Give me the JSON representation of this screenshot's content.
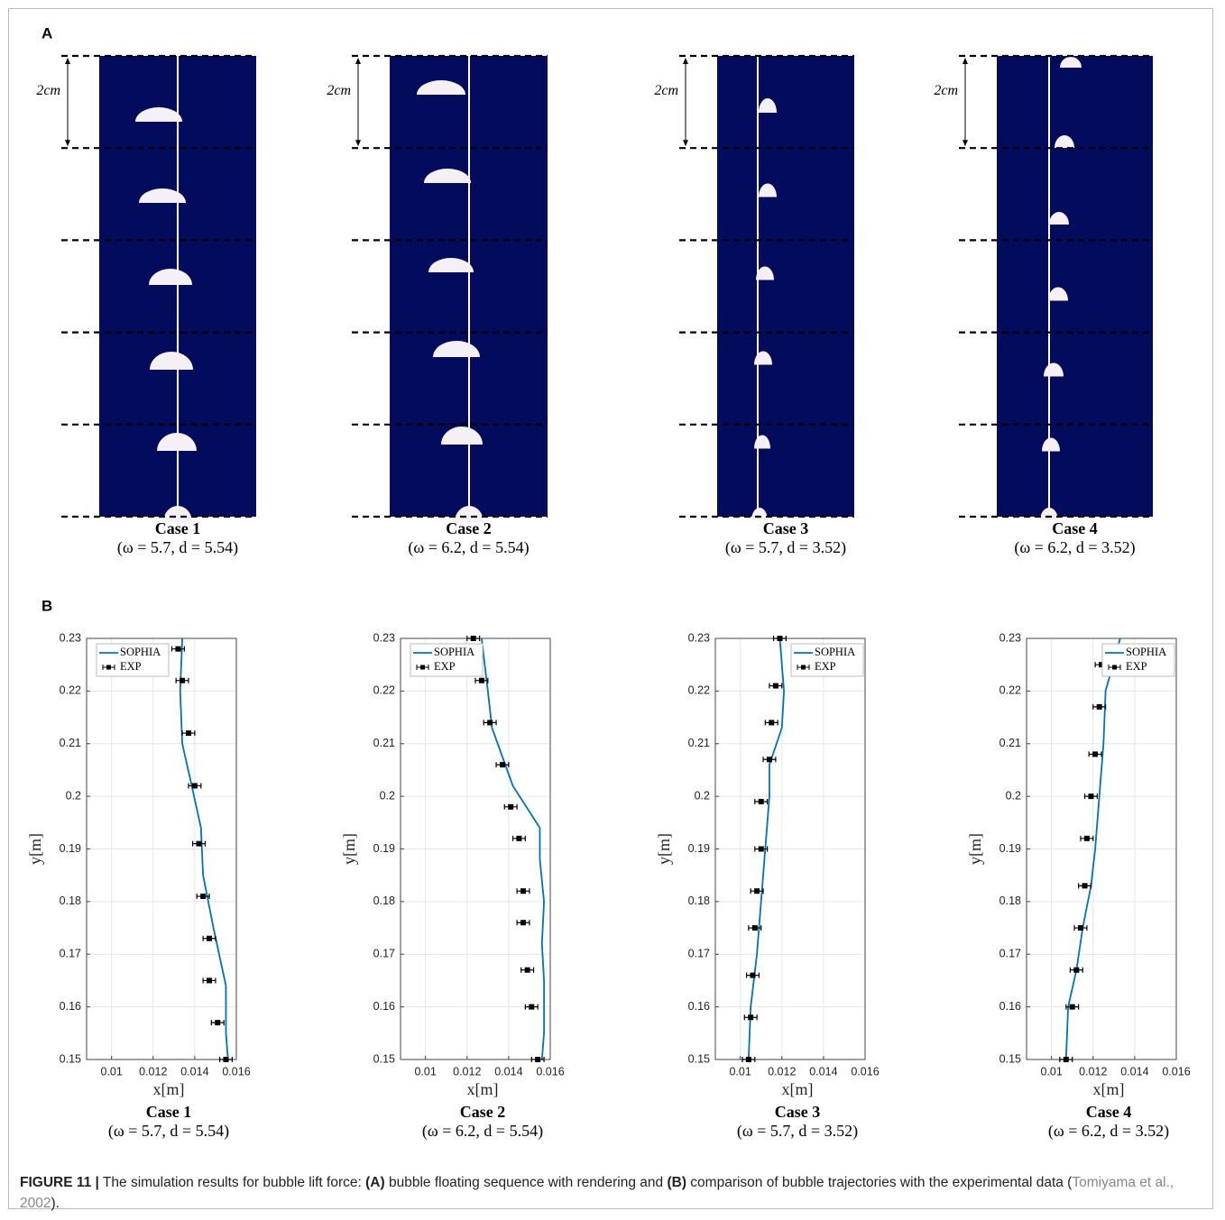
{
  "panel_a": {
    "label": "A",
    "scale_label": "2cm",
    "cases": [
      {
        "title": "Case 1",
        "params": "(ω = 5.7, d = 5.54)"
      },
      {
        "title": "Case 2",
        "params": "(ω = 6.2, d = 5.54)"
      },
      {
        "title": "Case 3",
        "params": "(ω = 5.7, d = 3.52)"
      },
      {
        "title": "Case 4",
        "params": "(ω = 6.2, d = 3.52)"
      }
    ]
  },
  "panel_b_label": "B",
  "chart_data": [
    {
      "type": "line",
      "title": "Case 1",
      "subtitle": "(ω = 5.7, d = 5.54)",
      "xlabel": "x[m]",
      "ylabel": "y[m]",
      "xlim": [
        0.0088,
        0.016
      ],
      "ylim": [
        0.15,
        0.23
      ],
      "xticks": [
        0.01,
        0.012,
        0.014,
        0.016
      ],
      "yticks": [
        0.15,
        0.16,
        0.17,
        0.18,
        0.19,
        0.2,
        0.21,
        0.22,
        0.23
      ],
      "grid": true,
      "legend": "upper left",
      "series": [
        {
          "name": "SOPHIA",
          "type": "line",
          "color": "#0072bd",
          "x": [
            0.0134,
            0.0133,
            0.0134,
            0.0138,
            0.0143,
            0.0144,
            0.0149,
            0.0155,
            0.0155,
            0.0156
          ],
          "values": [
            0.23,
            0.22,
            0.21,
            0.203,
            0.194,
            0.185,
            0.175,
            0.164,
            0.155,
            0.15
          ]
        },
        {
          "name": "EXP",
          "type": "errorbar",
          "color": "#000000",
          "x": [
            0.0132,
            0.0134,
            0.0137,
            0.014,
            0.0142,
            0.0144,
            0.0147,
            0.0147,
            0.0151,
            0.0155
          ],
          "values": [
            0.228,
            0.222,
            0.212,
            0.202,
            0.191,
            0.181,
            0.173,
            0.165,
            0.157,
            0.15
          ],
          "xerr": [
            0.0003,
            0.0003,
            0.0003,
            0.0003,
            0.0003,
            0.0003,
            0.0003,
            0.0003,
            0.0003,
            0.0003
          ]
        }
      ]
    },
    {
      "type": "line",
      "title": "Case 2",
      "subtitle": "(ω = 6.2, d = 5.54)",
      "xlabel": "x[m]",
      "ylabel": "y[m]",
      "xlim": [
        0.0088,
        0.016
      ],
      "ylim": [
        0.15,
        0.23
      ],
      "xticks": [
        0.01,
        0.012,
        0.014,
        0.016
      ],
      "yticks": [
        0.15,
        0.16,
        0.17,
        0.18,
        0.19,
        0.2,
        0.21,
        0.22,
        0.23
      ],
      "grid": true,
      "legend": "upper left",
      "series": [
        {
          "name": "SOPHIA",
          "type": "line",
          "color": "#0072bd",
          "x": [
            0.0127,
            0.013,
            0.0132,
            0.0142,
            0.0155,
            0.0155,
            0.0157,
            0.0156,
            0.0157,
            0.0157,
            0.0156
          ],
          "values": [
            0.23,
            0.22,
            0.213,
            0.202,
            0.194,
            0.188,
            0.18,
            0.172,
            0.165,
            0.155,
            0.15
          ]
        },
        {
          "name": "EXP",
          "type": "errorbar",
          "color": "#000000",
          "x": [
            0.0123,
            0.0127,
            0.0131,
            0.0137,
            0.0141,
            0.0145,
            0.0147,
            0.0147,
            0.0149,
            0.0151,
            0.0154
          ],
          "values": [
            0.23,
            0.222,
            0.214,
            0.206,
            0.198,
            0.192,
            0.182,
            0.176,
            0.167,
            0.16,
            0.15
          ],
          "xerr": [
            0.0003,
            0.0003,
            0.0003,
            0.0003,
            0.0003,
            0.0003,
            0.0003,
            0.0003,
            0.0003,
            0.0003,
            0.0003
          ]
        }
      ]
    },
    {
      "type": "line",
      "title": "Case 3",
      "subtitle": "(ω = 5.7, d = 3.52)",
      "xlabel": "x[m]",
      "ylabel": "y[m]",
      "xlim": [
        0.0088,
        0.016
      ],
      "ylim": [
        0.15,
        0.23
      ],
      "xticks": [
        0.01,
        0.012,
        0.014,
        0.016
      ],
      "yticks": [
        0.15,
        0.16,
        0.17,
        0.18,
        0.19,
        0.2,
        0.21,
        0.22,
        0.23
      ],
      "grid": true,
      "legend": "upper right",
      "series": [
        {
          "name": "SOPHIA",
          "type": "line",
          "color": "#0072bd",
          "x": [
            0.0119,
            0.0121,
            0.012,
            0.0114,
            0.0114,
            0.0112,
            0.011,
            0.0108,
            0.0105,
            0.0104
          ],
          "values": [
            0.23,
            0.22,
            0.213,
            0.206,
            0.2,
            0.19,
            0.18,
            0.17,
            0.16,
            0.15
          ]
        },
        {
          "name": "EXP",
          "type": "errorbar",
          "color": "#000000",
          "x": [
            0.0119,
            0.0117,
            0.0115,
            0.0114,
            0.011,
            0.011,
            0.0108,
            0.0107,
            0.0106,
            0.0105,
            0.0104
          ],
          "values": [
            0.23,
            0.221,
            0.214,
            0.207,
            0.199,
            0.19,
            0.182,
            0.175,
            0.166,
            0.158,
            0.15
          ],
          "xerr": [
            0.0003,
            0.0003,
            0.0003,
            0.0003,
            0.0003,
            0.0003,
            0.0003,
            0.0003,
            0.0003,
            0.0003,
            0.0003
          ]
        }
      ]
    },
    {
      "type": "line",
      "title": "Case 4",
      "subtitle": "(ω = 6.2, d = 3.52)",
      "xlabel": "x[m]",
      "ylabel": "y[m]",
      "xlim": [
        0.0088,
        0.016
      ],
      "ylim": [
        0.15,
        0.23
      ],
      "xticks": [
        0.01,
        0.012,
        0.014,
        0.016
      ],
      "yticks": [
        0.15,
        0.16,
        0.17,
        0.18,
        0.19,
        0.2,
        0.21,
        0.22,
        0.23
      ],
      "grid": true,
      "legend": "upper right",
      "series": [
        {
          "name": "SOPHIA",
          "type": "line",
          "color": "#0072bd",
          "x": [
            0.0133,
            0.0126,
            0.0125,
            0.0123,
            0.0121,
            0.0119,
            0.0115,
            0.0112,
            0.0108,
            0.0107
          ],
          "values": [
            0.23,
            0.22,
            0.21,
            0.2,
            0.19,
            0.183,
            0.175,
            0.167,
            0.16,
            0.15
          ]
        },
        {
          "name": "EXP",
          "type": "errorbar",
          "color": "#000000",
          "x": [
            0.0124,
            0.0123,
            0.0121,
            0.0119,
            0.0117,
            0.0116,
            0.0114,
            0.0112,
            0.011,
            0.0107
          ],
          "values": [
            0.225,
            0.217,
            0.208,
            0.2,
            0.192,
            0.183,
            0.175,
            0.167,
            0.16,
            0.15
          ],
          "xerr": [
            0.0003,
            0.0003,
            0.0003,
            0.0003,
            0.0003,
            0.0003,
            0.0003,
            0.0003,
            0.0003,
            0.0003
          ]
        }
      ]
    }
  ],
  "caption": {
    "figure": "FIGURE 11 |",
    "text1": " The simulation results for bubble lift force: ",
    "a": "(A)",
    "text2": " bubble floating sequence with rendering and ",
    "b": "(B)",
    "text3": " comparison of bubble trajectories with the experimental data (",
    "ref": "Tomiyama et al., 2002",
    "text4": ")."
  }
}
